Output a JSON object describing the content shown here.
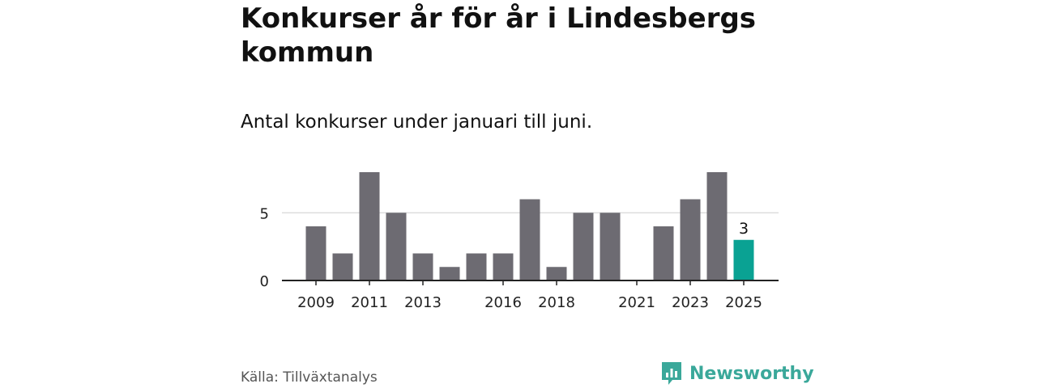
{
  "title": "Konkurser år för år i Lindesbergs kommun",
  "subtitle": "Antal konkurser under januari till juni.",
  "source": "Källa: Tillväxtanalys",
  "brand": {
    "name": "Newsworthy",
    "icon": "newsworthy-logo-icon"
  },
  "colors": {
    "bar": "#6d6b72",
    "highlight": "#0aa293",
    "gridline": "#dddddd",
    "axis": "#222222",
    "brand": "#3aa89a"
  },
  "chart_data": {
    "type": "bar",
    "categories": [
      "2009",
      "2010",
      "2011",
      "2012",
      "2013",
      "2014",
      "2015",
      "2016",
      "2017",
      "2018",
      "2019",
      "2020",
      "2021",
      "2022",
      "2023",
      "2024",
      "2025"
    ],
    "values": [
      4,
      2,
      8,
      5,
      2,
      1,
      2,
      2,
      6,
      1,
      5,
      5,
      0,
      4,
      6,
      8,
      3
    ],
    "x_tick_labels": [
      "2009",
      "2011",
      "2013",
      "2016",
      "2018",
      "2021",
      "2023",
      "2025"
    ],
    "y_ticks": [
      0,
      5
    ],
    "ylim": [
      0,
      8
    ],
    "highlight_category": "2025",
    "data_labels": [
      {
        "category": "2025",
        "label": "3"
      }
    ],
    "gridlines": true,
    "legend": "none"
  }
}
